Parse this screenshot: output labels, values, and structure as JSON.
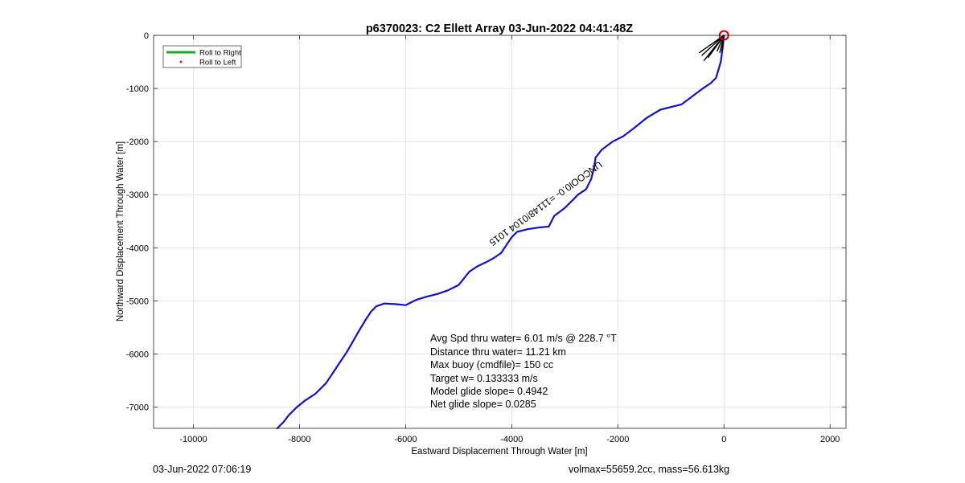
{
  "chart_data": {
    "type": "line",
    "title": "p6370023: C2 Ellett Array 03-Jun-2022 04:41:48Z",
    "xlabel": "Eastward Displacement Through Water [m]",
    "ylabel": "Northward Displacement Through Water [m]",
    "xlim": [
      -10750,
      2300
    ],
    "ylim": [
      -7400,
      0
    ],
    "xticks": [
      -10000,
      -8000,
      -6000,
      -4000,
      -2000,
      0,
      2000
    ],
    "yticks": [
      0,
      -1000,
      -2000,
      -3000,
      -4000,
      -5000,
      -6000,
      -7000
    ],
    "grid": true,
    "legend": {
      "placement": "top-left",
      "entries": [
        {
          "label": "Roll to Right",
          "color": "#22aa22",
          "style": "line"
        },
        {
          "label": "Roll to Left",
          "color": "#dd2222",
          "style": "dot"
        }
      ]
    },
    "series": [
      {
        "color": "#1111cc",
        "x": [
          0,
          -20,
          -60,
          -150,
          -250,
          -400,
          -600,
          -800,
          -1000,
          -1200,
          -1450,
          -1700,
          -1900,
          -2100,
          -2300,
          -2420,
          -2450,
          -2500,
          -2600,
          -2750,
          -2850,
          -3000,
          -3200,
          -3300,
          -3500,
          -3700,
          -3900,
          -4000,
          -4200,
          -4350,
          -4500,
          -4650,
          -4800,
          -5000,
          -5200,
          -5400,
          -5600,
          -5800,
          -6000,
          -6200,
          -6400,
          -6550,
          -6650,
          -6750,
          -6900,
          -7100,
          -7300,
          -7500,
          -7700,
          -7900,
          -8050,
          -8200,
          -8300,
          -8420
        ],
        "y": [
          0,
          -200,
          -500,
          -800,
          -900,
          -1000,
          -1150,
          -1300,
          -1350,
          -1400,
          -1550,
          -1750,
          -1900,
          -2000,
          -2150,
          -2300,
          -2500,
          -2700,
          -2900,
          -3000,
          -3100,
          -3250,
          -3400,
          -3600,
          -3620,
          -3650,
          -3700,
          -3800,
          -4100,
          -4200,
          -4280,
          -4350,
          -4450,
          -4700,
          -4800,
          -4870,
          -4920,
          -4980,
          -5080,
          -5060,
          -5050,
          -5100,
          -5200,
          -5350,
          -5600,
          -5950,
          -6250,
          -6550,
          -6750,
          -6880,
          -7000,
          -7150,
          -7280,
          -7400
        ]
      }
    ],
    "markers": [
      {
        "type": "start-circle",
        "x": 0,
        "y": 0,
        "color": "#cc0000"
      }
    ],
    "annotation_text": "UNCOOl0.0- =11148!0104 1015",
    "stats": [
      "Avg Spd thru water=  6.01 m/s @ 228.7 °T",
      "Distance thru water= 11.21 km",
      "Max buoy (cmdfile)= 150 cc",
      "Target w= 0.133333 m/s",
      "Model glide slope= 0.4942",
      "Net glide slope= 0.0285"
    ]
  },
  "footer": {
    "timestamp": "03-Jun-2022 07:06:19",
    "vehicle": "volmax=55659.2cc, mass=56.613kg"
  }
}
